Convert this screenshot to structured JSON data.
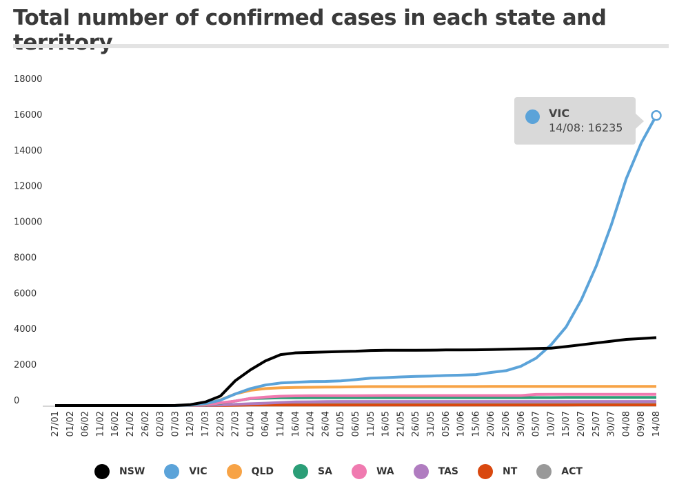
{
  "title": "Total number of confirmed cases in each state and territory",
  "chart_data": {
    "type": "line",
    "title": "Total number of confirmed cases in each state and territory",
    "xlabel": "",
    "ylabel": "",
    "ylim": [
      0,
      18000
    ],
    "yticks": [
      "0",
      "2000",
      "4000",
      "6000",
      "8000",
      "10000",
      "12000",
      "14000",
      "16000",
      "18000"
    ],
    "categories": [
      "27/01",
      "01/02",
      "06/02",
      "11/02",
      "16/02",
      "21/02",
      "26/02",
      "02/03",
      "07/03",
      "12/03",
      "17/03",
      "22/03",
      "27/03",
      "01/04",
      "06/04",
      "11/04",
      "16/04",
      "21/04",
      "26/04",
      "01/05",
      "06/05",
      "11/05",
      "16/05",
      "21/05",
      "26/05",
      "31/05",
      "05/06",
      "10/06",
      "15/06",
      "20/06",
      "25/06",
      "30/06",
      "05/07",
      "10/07",
      "15/07",
      "20/07",
      "25/07",
      "30/07",
      "04/08",
      "09/08",
      "14/08"
    ],
    "grid": false,
    "legend": "bottom",
    "series": [
      {
        "name": "NSW",
        "color": "#000000",
        "values": [
          0,
          0,
          0,
          0,
          0,
          0,
          0,
          0,
          4,
          50,
          200,
          530,
          1400,
          2000,
          2500,
          2850,
          2950,
          2970,
          3000,
          3020,
          3040,
          3080,
          3090,
          3090,
          3090,
          3100,
          3110,
          3110,
          3120,
          3130,
          3150,
          3170,
          3190,
          3210,
          3300,
          3400,
          3500,
          3600,
          3700,
          3750,
          3800
        ]
      },
      {
        "name": "VIC",
        "color": "#5ba3d9",
        "values": [
          0,
          0,
          0,
          0,
          0,
          0,
          0,
          0,
          0,
          20,
          100,
          300,
          650,
          950,
          1150,
          1260,
          1300,
          1340,
          1350,
          1380,
          1450,
          1530,
          1560,
          1600,
          1630,
          1650,
          1680,
          1700,
          1730,
          1850,
          1950,
          2200,
          2650,
          3400,
          4400,
          5900,
          7800,
          10100,
          12700,
          14700,
          16235
        ]
      },
      {
        "name": "QLD",
        "color": "#f7a346",
        "values": [
          0,
          0,
          0,
          0,
          0,
          0,
          0,
          0,
          0,
          10,
          80,
          320,
          650,
          850,
          950,
          990,
          1010,
          1020,
          1030,
          1035,
          1050,
          1060,
          1060,
          1060,
          1060,
          1065,
          1065,
          1065,
          1065,
          1067,
          1067,
          1067,
          1070,
          1070,
          1070,
          1070,
          1070,
          1070,
          1070,
          1070,
          1070
        ]
      },
      {
        "name": "SA",
        "color": "#2b9e77",
        "values": [
          0,
          0,
          0,
          0,
          0,
          0,
          0,
          0,
          0,
          2,
          20,
          130,
          250,
          390,
          410,
          430,
          435,
          438,
          440,
          440,
          440,
          440,
          440,
          440,
          440,
          440,
          440,
          440,
          440,
          440,
          440,
          440,
          443,
          445,
          450,
          450,
          450,
          450,
          450,
          450,
          450
        ]
      },
      {
        "name": "WA",
        "color": "#f07ab0",
        "values": [
          0,
          0,
          0,
          0,
          0,
          0,
          0,
          0,
          0,
          5,
          30,
          150,
          250,
          400,
          470,
          520,
          540,
          550,
          550,
          551,
          552,
          555,
          557,
          557,
          557,
          560,
          560,
          560,
          560,
          560,
          560,
          560,
          620,
          625,
          625,
          625,
          625,
          625,
          625,
          625,
          625
        ]
      },
      {
        "name": "TAS",
        "color": "#b07cc0",
        "values": [
          0,
          0,
          0,
          0,
          0,
          0,
          0,
          0,
          0,
          1,
          10,
          30,
          60,
          100,
          130,
          170,
          200,
          210,
          220,
          226,
          226,
          226,
          226,
          226,
          226,
          226,
          226,
          226,
          226,
          226,
          226,
          226,
          226,
          226,
          226,
          226,
          226,
          226,
          226,
          226,
          226
        ]
      },
      {
        "name": "NT",
        "color": "#d9480f",
        "values": [
          0,
          0,
          0,
          0,
          0,
          0,
          0,
          0,
          0,
          0,
          1,
          5,
          15,
          26,
          28,
          28,
          28,
          28,
          29,
          29,
          29,
          29,
          29,
          29,
          29,
          29,
          29,
          29,
          29,
          29,
          29,
          30,
          31,
          31,
          32,
          33,
          33,
          33,
          33,
          33,
          33
        ]
      },
      {
        "name": "ACT",
        "color": "#999999",
        "values": [
          0,
          0,
          0,
          0,
          0,
          0,
          0,
          0,
          0,
          1,
          3,
          20,
          60,
          90,
          100,
          103,
          103,
          104,
          106,
          106,
          107,
          107,
          107,
          107,
          107,
          107,
          108,
          108,
          108,
          108,
          110,
          110,
          110,
          110,
          110,
          113,
          113,
          113,
          113,
          113,
          113
        ]
      }
    ]
  },
  "tooltip": {
    "series": "VIC",
    "text": "14/08: 16235",
    "color": "#5ba3d9"
  }
}
